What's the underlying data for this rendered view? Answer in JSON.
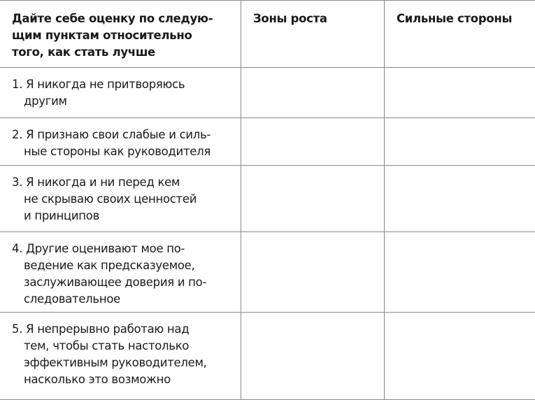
{
  "header": {
    "criteria_lines": [
      "Дайте себе оценку по следую-",
      "щим пунктам относительно",
      "того,  как стать лучше"
    ],
    "growth_zones": "Зоны роста",
    "strengths": "Сильные стороны"
  },
  "rows": [
    {
      "number": "1.",
      "lines": [
        "Я никогда не притворяюсь",
        "другим"
      ]
    },
    {
      "number": "2.",
      "lines": [
        "Я признаю свои слабые и силь-",
        "ные стороны как руководителя"
      ]
    },
    {
      "number": "3.",
      "lines": [
        "Я никогда и ни перед кем",
        "не скрываю своих ценностей",
        "и принципов"
      ]
    },
    {
      "number": "4.",
      "lines": [
        "Другие оценивают мое по-",
        "ведение как предсказуемое,",
        "заслуживающее доверия и по-",
        "следовательное"
      ]
    },
    {
      "number": "5.",
      "lines": [
        "Я непрерывно работаю над",
        "тем, чтобы стать настолько",
        "эффективным руководителем,",
        "насколько это возможно"
      ]
    }
  ]
}
